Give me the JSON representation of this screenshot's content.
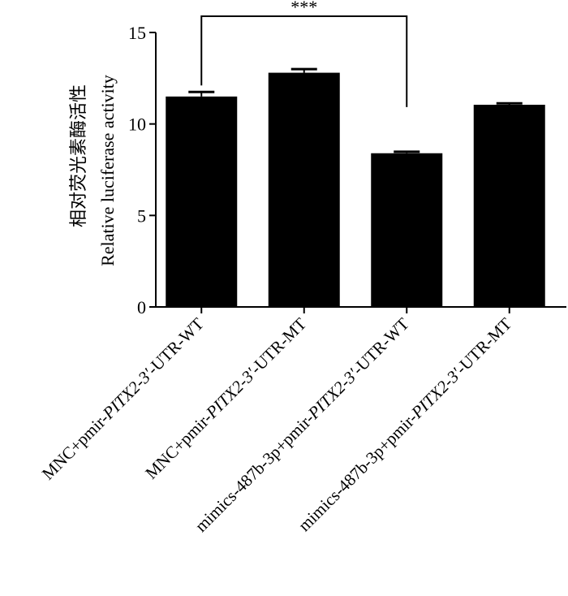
{
  "chart_data": {
    "type": "bar",
    "categories": [
      {
        "pre": "MNC+pmir-",
        "gene": "PITX2-3′",
        "post": "-UTR-WT"
      },
      {
        "pre": "MNC+pmir-",
        "gene": "PITX2-3′",
        "post": "-UTR-MT"
      },
      {
        "pre": "mimics-487b-3p+pmir-",
        "gene": "PITX2-3′",
        "post": "-UTR-WT"
      },
      {
        "pre": "mimics-487b-3p+pmir-",
        "gene": "PITX2-3′",
        "post": "-UTR-MT"
      }
    ],
    "values": [
      11.5,
      12.8,
      8.4,
      11.05
    ],
    "errors": [
      0.25,
      0.2,
      0.08,
      0.08
    ],
    "ylabel_cn": "相对荧光素酶活性",
    "ylabel_en": "Relative luciferase activity",
    "ylim": [
      0,
      15
    ],
    "yticks": [
      0,
      5,
      10,
      15
    ],
    "significance": {
      "from": 0,
      "to": 2,
      "label": "***"
    },
    "bar_color": "#000000",
    "grid": false
  }
}
